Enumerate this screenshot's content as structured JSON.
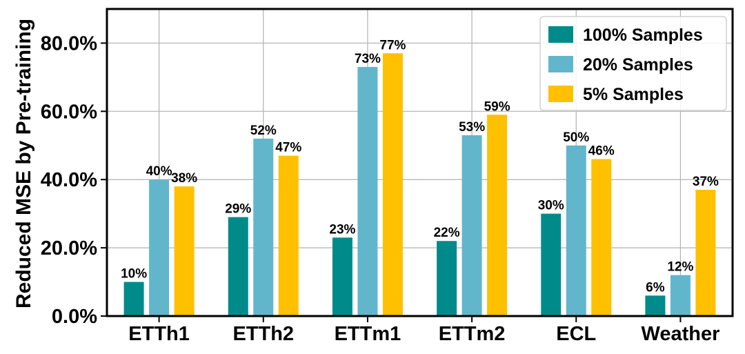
{
  "chart_data": {
    "type": "bar",
    "title": "",
    "xlabel": "",
    "ylabel": "Reduced MSE by Pre-training",
    "ylim": [
      0,
      90
    ],
    "yticks": [
      0,
      20,
      40,
      60,
      80
    ],
    "ytick_labels": [
      "0.0%",
      "20.0%",
      "40.0%",
      "60.0%",
      "80.0%"
    ],
    "grid": true,
    "legend_position": "top-right",
    "categories": [
      "ETTh1",
      "ETTh2",
      "ETTm1",
      "ETTm2",
      "ECL",
      "Weather"
    ],
    "series": [
      {
        "name": "100% Samples",
        "color": "#008B8A",
        "values": [
          10,
          29,
          23,
          22,
          30,
          6
        ],
        "labels": [
          "10%",
          "29%",
          "23%",
          "22%",
          "30%",
          "6%"
        ]
      },
      {
        "name": "20% Samples",
        "color": "#62B6CC",
        "values": [
          40,
          52,
          73,
          53,
          50,
          12
        ],
        "labels": [
          "40%",
          "52%",
          "73%",
          "53%",
          "50%",
          "12%"
        ]
      },
      {
        "name": "5% Samples",
        "color": "#FFC000",
        "values": [
          38,
          47,
          77,
          59,
          46,
          37
        ],
        "labels": [
          "38%",
          "47%",
          "77%",
          "59%",
          "46%",
          "37%"
        ]
      }
    ]
  }
}
